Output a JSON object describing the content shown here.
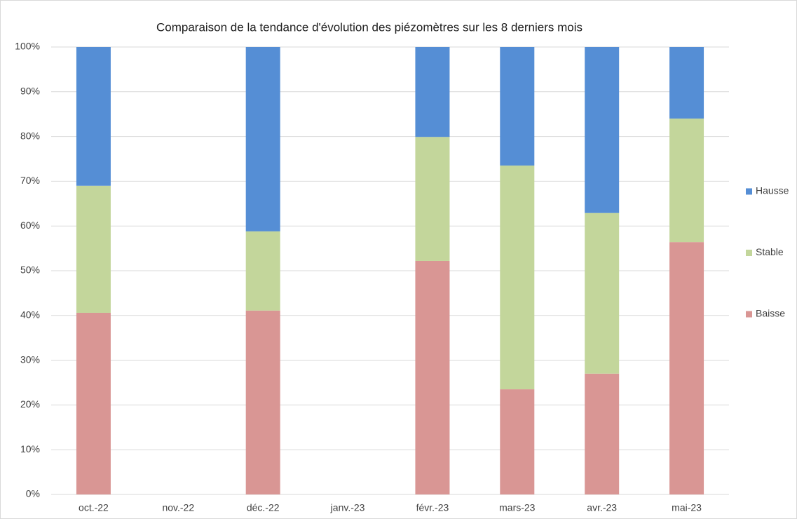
{
  "chart_data": {
    "type": "stacked_bar",
    "title": "Comparaison de la tendance d'évolution des piézomètres sur les 8 derniers mois",
    "categories": [
      "oct.-22",
      "nov.-22",
      "déc.-22",
      "janv.-23",
      "févr.-23",
      "mars-23",
      "avr.-23",
      "mai-23"
    ],
    "series": [
      {
        "name": "Baisse",
        "color": "#d99694",
        "values": [
          40.6,
          null,
          41.1,
          null,
          52.2,
          23.5,
          27.0,
          56.4
        ]
      },
      {
        "name": "Stable",
        "color": "#c3d69b",
        "values": [
          28.4,
          null,
          17.7,
          null,
          27.7,
          50.0,
          35.9,
          27.6
        ]
      },
      {
        "name": "Hausse",
        "color": "#558ed5",
        "values": [
          31.0,
          null,
          41.2,
          null,
          20.1,
          26.5,
          37.1,
          16.0
        ]
      }
    ],
    "ylim": [
      0,
      100
    ],
    "yticks": [
      {
        "value": 0,
        "label": "0%"
      },
      {
        "value": 10,
        "label": "10%"
      },
      {
        "value": 20,
        "label": "20%"
      },
      {
        "value": 30,
        "label": "30%"
      },
      {
        "value": 40,
        "label": "40%"
      },
      {
        "value": 50,
        "label": "50%"
      },
      {
        "value": 60,
        "label": "60%"
      },
      {
        "value": 70,
        "label": "70%"
      },
      {
        "value": 80,
        "label": "80%"
      },
      {
        "value": 90,
        "label": "90%"
      },
      {
        "value": 100,
        "label": "100%"
      }
    ],
    "grid": true,
    "legend": "right"
  }
}
